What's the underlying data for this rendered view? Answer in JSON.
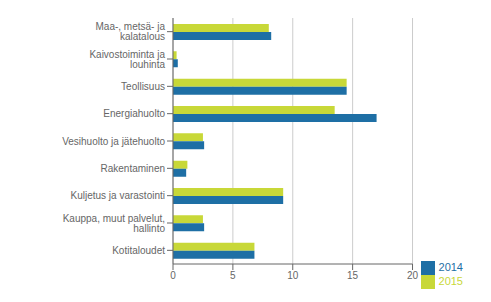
{
  "chart_data": {
    "type": "bar",
    "orientation": "horizontal",
    "categories": [
      "Kotitaloudet",
      "Kauppa, muut palvelut, hallinto",
      "Kuljetus ja varastointi",
      "Rakentaminen",
      "Vesihuolto ja jätehuolto",
      "Energiahuolto",
      "Teollisuus",
      "Kaivostoiminta ja louhinta",
      "Maa-, metsä- ja kalatalous"
    ],
    "series": [
      {
        "name": "2015",
        "color": "#c8d838",
        "values": [
          6.8,
          2.5,
          9.2,
          1.2,
          2.5,
          13.5,
          14.5,
          0.3,
          8.0
        ]
      },
      {
        "name": "2014",
        "color": "#1e6fa5",
        "values": [
          6.8,
          2.6,
          9.2,
          1.1,
          2.6,
          17.0,
          14.5,
          0.4,
          8.2
        ]
      }
    ],
    "xlim": [
      0,
      20
    ],
    "xticks": [
      0,
      5,
      10,
      15,
      20
    ],
    "grid": true,
    "legend": "lower right"
  }
}
